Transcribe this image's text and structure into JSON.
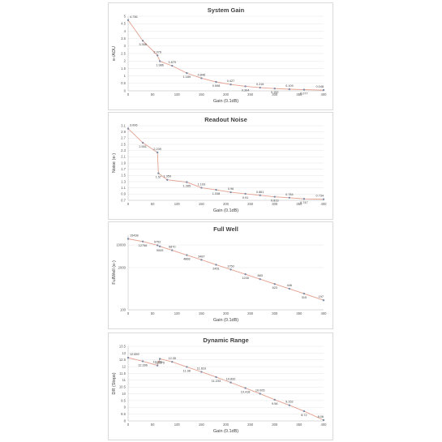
{
  "charts": [
    {
      "type": "line",
      "title": "System Gain",
      "xlabel": "Gain (0.1dB)",
      "ylabel": "e-/ADU",
      "xlim": [
        0,
        400
      ],
      "ylim": [
        0,
        5
      ],
      "yscale": "linear",
      "xticks": [
        0,
        50,
        100,
        150,
        200,
        250,
        300,
        350,
        400
      ],
      "yticks": [
        0,
        0.5,
        1,
        1.5,
        2,
        2.5,
        3,
        3.5,
        4,
        4.5,
        5
      ],
      "ytick_labels": [
        "0",
        "0.5",
        "1",
        "1.5",
        "2",
        "2.5",
        "3",
        "3.5",
        "4",
        "4.5",
        "5"
      ],
      "grid": true,
      "line_color": "#e3a08f",
      "marker_color": "#7f8fa9",
      "series": [
        {
          "x": [
            0,
            30,
            60,
            65,
            90,
            120,
            150,
            180,
            210,
            240,
            270,
            300,
            330,
            360,
            400
          ],
          "y": [
            4.736,
            3.358,
            2.376,
            1.986,
            1.679,
            1.189,
            0.846,
            0.598,
            0.427,
            0.304,
            0.216,
            0.152,
            0.109,
            0.077,
            0.048
          ],
          "labels": [
            "4.736",
            "3.358",
            "2.376",
            "1.986",
            "1.679",
            "1.189",
            "0.846",
            "0.598",
            "0.427",
            "0.304",
            "0.216",
            "0.152",
            "0.109",
            "0.077",
            "0.048"
          ]
        }
      ]
    },
    {
      "type": "line",
      "title": "Readout Noise",
      "xlabel": "Gain (0.1dB)",
      "ylabel": "Noise (e-)",
      "xlim": [
        0,
        400
      ],
      "ylim": [
        0.7,
        3.1
      ],
      "yscale": "linear",
      "xticks": [
        0,
        50,
        100,
        150,
        200,
        250,
        300,
        350,
        400
      ],
      "yticks": [
        0.7,
        0.9,
        1.1,
        1.3,
        1.5,
        1.7,
        1.9,
        2.1,
        2.3,
        2.5,
        2.7,
        2.9,
        3.1
      ],
      "ytick_labels": [
        "0.7",
        "0.9",
        "1.1",
        "1.3",
        "1.5",
        "1.7",
        "1.9",
        "2.1",
        "2.3",
        "2.5",
        "2.7",
        "2.9",
        "3.1"
      ],
      "grid": true,
      "line_color": "#e3a08f",
      "marker_color": "#7f8fa9",
      "series": [
        {
          "x": [
            0,
            30,
            60,
            62,
            80,
            120,
            150,
            180,
            210,
            240,
            270,
            300,
            330,
            360,
            400
          ],
          "y": [
            3.006,
            2.551,
            2.239,
            1.57,
            1.359,
            1.285,
            1.103,
            1.038,
            0.96,
            0.91,
            0.861,
            0.813,
            0.784,
            0.747,
            0.734
          ],
          "labels": [
            "3.006",
            "2.551",
            "2.239",
            "1.57",
            "1.359",
            "1.285",
            "1.103",
            "1.038",
            "0.96",
            "0.91",
            "0.861",
            "0.813",
            "0.784",
            "0.747",
            "0.734"
          ]
        }
      ]
    },
    {
      "type": "line",
      "title": "Full Well",
      "xlabel": "Gain (0.1dB)",
      "ylabel": "FullWell (e-)",
      "xlim": [
        0,
        400
      ],
      "ylim": [
        100,
        20000
      ],
      "yscale": "log",
      "xticks": [
        0,
        50,
        100,
        150,
        200,
        250,
        300,
        350,
        400
      ],
      "yticks": [
        100,
        2000,
        10000
      ],
      "ytick_labels": [
        "100",
        "2000",
        "10000"
      ],
      "grid": true,
      "line_color": "#e3a08f",
      "marker_color": "#7f8fa9",
      "series": [
        {
          "x": [
            0,
            30,
            60,
            65,
            90,
            120,
            150,
            180,
            210,
            240,
            270,
            300,
            330,
            360,
            400
          ],
          "y": [
            15438,
            12756,
            9752,
            9009,
            6870,
            4868,
            3487,
            2451,
            1750,
            1245,
            883,
            623,
            446,
            315,
            197
          ],
          "labels": [
            "15438",
            "12756",
            "9752",
            "9009",
            "6870",
            "4868",
            "3487",
            "2451",
            "1750",
            "1245",
            "883",
            "623",
            "446",
            "315",
            "197"
          ]
        }
      ]
    },
    {
      "type": "line",
      "title": "Dynamic Range",
      "xlabel": "Gain (0.1dB)",
      "ylabel": "DR (Stops)",
      "xlim": [
        0,
        400
      ],
      "ylim": [
        8,
        13.5
      ],
      "yscale": "linear",
      "xticks": [
        0,
        50,
        100,
        150,
        200,
        250,
        300,
        350,
        400
      ],
      "yticks": [
        8,
        8.5,
        9,
        9.5,
        10,
        10.5,
        11,
        11.5,
        12,
        12.5,
        13,
        13.5
      ],
      "ytick_labels": [
        "8",
        "8.5",
        "9",
        "9.5",
        "10",
        "10.5",
        "11",
        "11.5",
        "12",
        "12.5",
        "13",
        "13.5"
      ],
      "grid": true,
      "line_color": "#e3a08f",
      "marker_color": "#7f8fa9",
      "series": [
        {
          "x": [
            0,
            30,
            60,
            65,
            90,
            120,
            150,
            180,
            210,
            240,
            270,
            300,
            330,
            360,
            400
          ],
          "y": [
            12.659,
            12.396,
            12.086,
            12.575,
            12.35,
            11.98,
            11.616,
            11.233,
            10.832,
            10.418,
            10.005,
            9.56,
            9.152,
            8.72,
            8.06
          ],
          "labels": [
            "12.659",
            "12.396",
            "12.086",
            "12.575",
            "12.35",
            "11.98",
            "11.616",
            "11.233",
            "10.832",
            "10.418",
            "10.005",
            "9.56",
            "9.152",
            "8.72",
            "8.06"
          ]
        }
      ]
    }
  ]
}
